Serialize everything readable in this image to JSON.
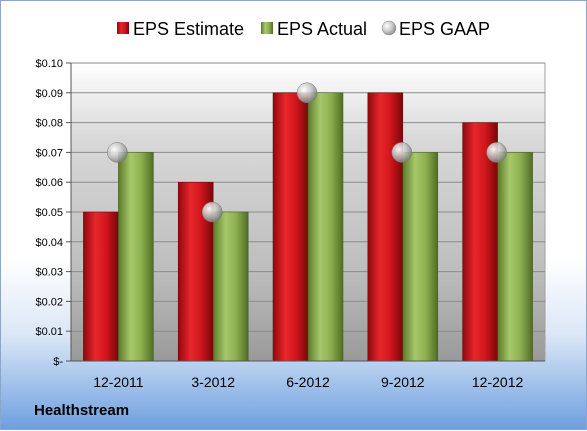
{
  "company": "Healthstream",
  "colors": {
    "estimate": "#d0161c",
    "actual": "#8db050",
    "gaap": "#b0b0b0"
  },
  "chart_data": {
    "type": "bar",
    "categories": [
      "12-2011",
      "3-2012",
      "6-2012",
      "9-2012",
      "12-2012"
    ],
    "series": [
      {
        "name": "EPS Estimate",
        "kind": "bar",
        "values": [
          0.05,
          0.06,
          0.09,
          0.09,
          0.08
        ]
      },
      {
        "name": "EPS Actual",
        "kind": "bar",
        "values": [
          0.07,
          0.05,
          0.09,
          0.07,
          0.07
        ]
      },
      {
        "name": "EPS GAAP",
        "kind": "marker",
        "values": [
          0.07,
          0.05,
          0.09,
          0.07,
          0.07
        ]
      }
    ],
    "ylim": [
      0,
      0.1
    ],
    "yticks": [
      0,
      0.01,
      0.02,
      0.03,
      0.04,
      0.05,
      0.06,
      0.07,
      0.08,
      0.09,
      0.1
    ],
    "ytick_labels": [
      "$-",
      "$0.01",
      "$0.02",
      "$0.03",
      "$0.04",
      "$0.05",
      "$0.06",
      "$0.07",
      "$0.08",
      "$0.09",
      "$0.10"
    ],
    "grid": true,
    "legend": "top"
  }
}
